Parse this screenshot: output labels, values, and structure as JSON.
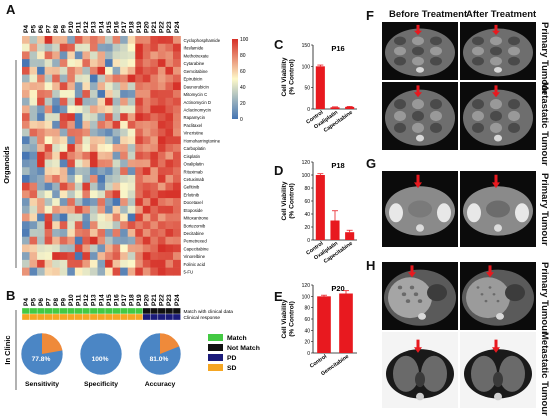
{
  "panels": {
    "A": "A",
    "B": "B",
    "C": "C",
    "D": "D",
    "E": "E",
    "F": "F",
    "G": "G",
    "H": "H"
  },
  "heatmap": {
    "patients": [
      "P4",
      "P5",
      "P6",
      "P7",
      "P8",
      "P9",
      "P10",
      "P11",
      "P12",
      "P13",
      "P14",
      "P15",
      "P16",
      "P17",
      "P18",
      "P19",
      "P20",
      "P21",
      "P22",
      "P23",
      "P24"
    ],
    "drugs": [
      "Cyclophosphamide",
      "Ifosfamide",
      "Methotrexate",
      "Cytarabine",
      "Gemcitabine",
      "Epirubicin",
      "Daunorubicin",
      "Mitomycin C",
      "Actinomycin D",
      "Aclacinomycin",
      "Rapamycin",
      "Paclitaxel",
      "Vincristine",
      "Homoharringtonine",
      "Carboplatin",
      "Cisplatin",
      "Oxaliplatin",
      "Rituximab",
      "Cetuximab",
      "Gefitinib",
      "Erlotinib",
      "Docetaxel",
      "Etoposide",
      "Mitoxantrone",
      "Bortezomib",
      "Decitabine",
      "Pemetrexed",
      "Capecitabine",
      "Vinorelbine",
      "Folinic acid",
      "5-FU"
    ],
    "ylabel": "Organoids",
    "colorbar_ticks": [
      "100",
      "80",
      "60",
      "40",
      "20",
      "0"
    ],
    "colors": {
      "high": "#d62f27",
      "mid": "#fdf8c8",
      "low": "#4575b4"
    }
  },
  "clinic": {
    "patients": [
      "P4",
      "P5",
      "P6",
      "P7",
      "P8",
      "P9",
      "P10",
      "P11",
      "P12",
      "P13",
      "P14",
      "P15",
      "P16",
      "P17",
      "P18",
      "P19",
      "P20",
      "P21",
      "P22",
      "P23",
      "P24"
    ],
    "row1_label": "Match with clinical data",
    "row2_label": "Clinical response",
    "match": [
      "M",
      "M",
      "M",
      "M",
      "M",
      "M",
      "M",
      "M",
      "M",
      "M",
      "M",
      "M",
      "M",
      "M",
      "M",
      "M",
      "N",
      "N",
      "N",
      "N",
      "N"
    ],
    "response": [
      "SD",
      "SD",
      "SD",
      "SD",
      "SD",
      "SD",
      "SD",
      "SD",
      "SD",
      "SD",
      "SD",
      "SD",
      "SD",
      "SD",
      "SD",
      "SD",
      "PD",
      "PD",
      "PD",
      "PD",
      "PD"
    ],
    "side_label": "In Clinic",
    "legend": [
      {
        "label": "Match",
        "color": "#43c943"
      },
      {
        "label": "Not Match",
        "color": "#111111"
      },
      {
        "label": "PD",
        "color": "#1b1b7a"
      },
      {
        "label": "SD",
        "color": "#f5a623"
      }
    ],
    "pies": [
      {
        "name": "Sensitivity",
        "value_label": "77.8%",
        "fraction": 0.778
      },
      {
        "name": "Specificity",
        "value_label": "100%",
        "fraction": 1.0
      },
      {
        "name": "Accuracy",
        "value_label": "81.0%",
        "fraction": 0.81
      }
    ],
    "pie_colors": {
      "main": "#4b86c5",
      "rest": "#ef8a3a"
    }
  },
  "chart_data": [
    {
      "type": "bar",
      "title": "P16",
      "ylabel": "Cell Viability (% Control)",
      "categories": [
        "Control",
        "Oxaliplatin",
        "Capecitabine"
      ],
      "values": [
        100,
        4,
        5
      ],
      "errors": [
        3,
        1,
        1
      ],
      "ylim": [
        0,
        150
      ],
      "yticks": [
        0,
        50,
        100,
        150
      ]
    },
    {
      "type": "bar",
      "title": "P18",
      "ylabel": "Cell Viability (% Control)",
      "categories": [
        "Control",
        "Oxaliplatin",
        "Capecitabine"
      ],
      "values": [
        100,
        30,
        12
      ],
      "errors": [
        2,
        15,
        3
      ],
      "ylim": [
        0,
        120
      ],
      "yticks": [
        0,
        20,
        40,
        60,
        80,
        100,
        120
      ]
    },
    {
      "type": "bar",
      "title": "P20",
      "ylabel": "Cell Viability (% Control)",
      "categories": [
        "Control",
        "Gemcitabine"
      ],
      "values": [
        100,
        105
      ],
      "errors": [
        2,
        5
      ],
      "ylim": [
        0,
        120
      ],
      "yticks": [
        0,
        20,
        40,
        60,
        80,
        100,
        120
      ]
    }
  ],
  "bar_color": "#e8191f",
  "imaging": {
    "before": "Before Treatment",
    "after": "After Treatment",
    "rows": [
      {
        "label": "Primary Tumour"
      },
      {
        "label": "Metastatic Tumour"
      },
      {
        "label": "Primary Tumour"
      },
      {
        "label": "Primary Tumour"
      },
      {
        "label": "Metastatic Tumour"
      }
    ],
    "arrow_color": "#e8191f"
  }
}
